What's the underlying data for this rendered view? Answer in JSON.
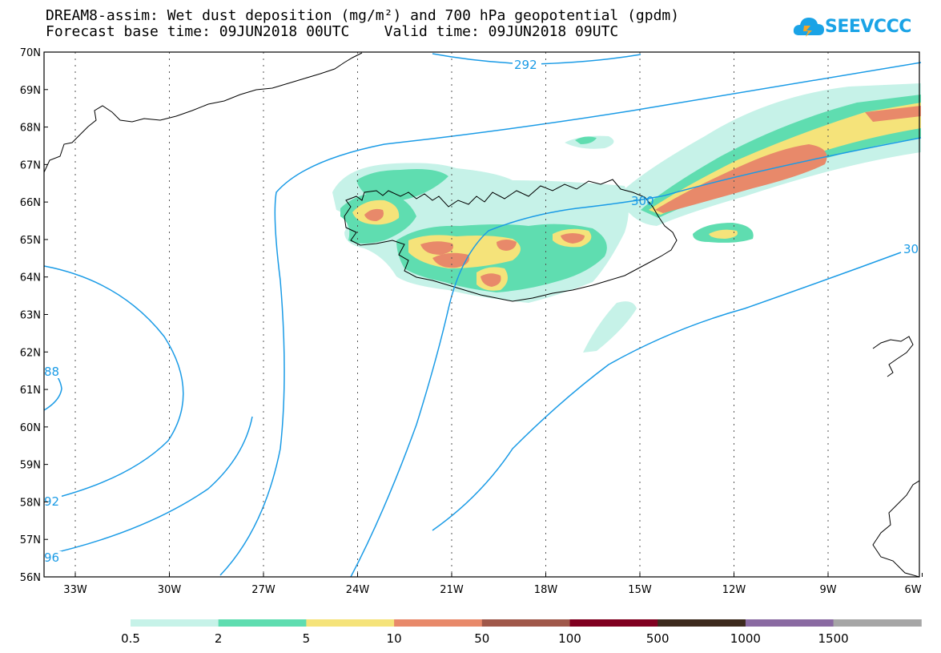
{
  "title": {
    "line1": "DREAM8-assim: Wet dust deposition (mg/m²) and 700 hPa geopotential (gpdm)",
    "line2": "Forecast base time: 09JUN2018 00UTC    Valid time: 09JUN2018 09UTC"
  },
  "logo": {
    "text": "SEEVCCC",
    "icon": "cloud-icon",
    "color": "#1aa3e6"
  },
  "axes": {
    "lat_labels": [
      "56N",
      "57N",
      "58N",
      "59N",
      "60N",
      "61N",
      "62N",
      "63N",
      "64N",
      "65N",
      "66N",
      "67N",
      "68N",
      "69N",
      "70N"
    ],
    "lon_labels": [
      "33W",
      "30W",
      "27W",
      "24W",
      "21W",
      "18W",
      "15W",
      "12W",
      "9W",
      "6W"
    ]
  },
  "contour_labels": {
    "c292_top": "292",
    "c300": "300",
    "c30": "30",
    "c88": "88",
    "c92": "92",
    "c96": "96"
  },
  "legend": {
    "labels": [
      "0.5",
      "2",
      "5",
      "10",
      "50",
      "100",
      "500",
      "1000",
      "1500"
    ],
    "colors": [
      "#c6f2e8",
      "#5fddb0",
      "#f5e37a",
      "#e8896a",
      "#a0584a",
      "#800020",
      "#3d2a1e",
      "#8a6aa2",
      "#a6a6a6"
    ]
  }
}
